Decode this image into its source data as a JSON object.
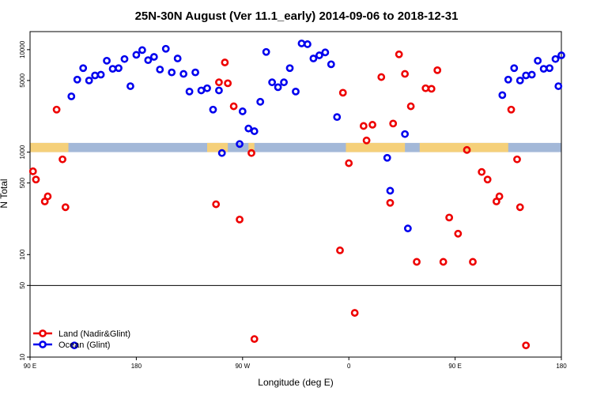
{
  "chart_data": {
    "type": "scatter",
    "title": "25N-30N August (Ver 11.1_early)   2014-09-06 to 2018-12-31",
    "xlabel": "Longitude (deg E)",
    "ylabel": "N Total",
    "xlim": [
      90,
      270
    ],
    "ylim": [
      10,
      15000
    ],
    "yscale": "log",
    "x_ticks": [
      {
        "value": 90,
        "label": "90 E"
      },
      {
        "value": 126,
        "label": "180"
      },
      {
        "value": 162,
        "label": "90 W"
      },
      {
        "value": 198,
        "label": "0"
      },
      {
        "value": 234,
        "label": "90 E"
      },
      {
        "value": 270,
        "label": "180"
      }
    ],
    "y_ticks": [
      {
        "value": 10,
        "label": "10"
      },
      {
        "value": 50,
        "label": "50"
      },
      {
        "value": 100,
        "label": "100"
      },
      {
        "value": 500,
        "label": "500"
      },
      {
        "value": 1000,
        "label": "1000"
      },
      {
        "value": 5000,
        "label": "5000"
      },
      {
        "value": 10000,
        "label": "10000"
      }
    ],
    "reference_lines": [
      50
    ],
    "surface_band": {
      "y_range": [
        1000,
        1230
      ],
      "land_color": "#F5D07A",
      "ocean_color": "#A3B8D8",
      "land_lon_ranges": [
        [
          90,
          103
        ],
        [
          150,
          157
        ],
        [
          164,
          166
        ],
        [
          197,
          217
        ],
        [
          222,
          252
        ]
      ]
    },
    "legend": {
      "position": "bottom-left"
    },
    "series": [
      {
        "name": "Land (Nadir&Glint)",
        "color": "#EE0000",
        "points": [
          [
            91,
            650
          ],
          [
            92,
            540
          ],
          [
            95,
            330
          ],
          [
            96,
            370
          ],
          [
            99,
            2600
          ],
          [
            101,
            850
          ],
          [
            102,
            290
          ],
          [
            153,
            310
          ],
          [
            154,
            4800
          ],
          [
            156,
            7500
          ],
          [
            157,
            4700
          ],
          [
            159,
            2800
          ],
          [
            161,
            220
          ],
          [
            165,
            980
          ],
          [
            166,
            15
          ],
          [
            195,
            110
          ],
          [
            196,
            3800
          ],
          [
            198,
            780
          ],
          [
            200,
            27
          ],
          [
            203,
            1800
          ],
          [
            204,
            1300
          ],
          [
            206,
            1850
          ],
          [
            209,
            5400
          ],
          [
            212,
            320
          ],
          [
            213,
            1900
          ],
          [
            215,
            9000
          ],
          [
            217,
            5800
          ],
          [
            219,
            2800
          ],
          [
            221,
            85
          ],
          [
            224,
            4200
          ],
          [
            226,
            4150
          ],
          [
            228,
            6300
          ],
          [
            230,
            85
          ],
          [
            232,
            230
          ],
          [
            235,
            160
          ],
          [
            238,
            1050
          ],
          [
            240,
            85
          ],
          [
            243,
            640
          ],
          [
            245,
            540
          ],
          [
            248,
            330
          ],
          [
            249,
            370
          ],
          [
            253,
            2600
          ],
          [
            255,
            850
          ],
          [
            256,
            290
          ],
          [
            258,
            13
          ]
        ]
      },
      {
        "name": "Ocean (Glint)",
        "color": "#0000EE",
        "points": [
          [
            104,
            3500
          ],
          [
            105,
            13
          ],
          [
            106,
            5100
          ],
          [
            108,
            6600
          ],
          [
            110,
            5000
          ],
          [
            112,
            5600
          ],
          [
            114,
            5700
          ],
          [
            116,
            7800
          ],
          [
            118,
            6500
          ],
          [
            120,
            6600
          ],
          [
            122,
            8100
          ],
          [
            124,
            4400
          ],
          [
            126,
            8900
          ],
          [
            128,
            9900
          ],
          [
            130,
            7900
          ],
          [
            132,
            8500
          ],
          [
            134,
            6400
          ],
          [
            136,
            10200
          ],
          [
            138,
            6000
          ],
          [
            140,
            8200
          ],
          [
            142,
            5800
          ],
          [
            144,
            3900
          ],
          [
            146,
            6000
          ],
          [
            148,
            4000
          ],
          [
            150,
            4200
          ],
          [
            152,
            2600
          ],
          [
            154,
            4000
          ],
          [
            155,
            980
          ],
          [
            161,
            1200
          ],
          [
            162,
            2500
          ],
          [
            164,
            1700
          ],
          [
            166,
            1600
          ],
          [
            168,
            3100
          ],
          [
            170,
            9500
          ],
          [
            172,
            4800
          ],
          [
            174,
            4300
          ],
          [
            176,
            4800
          ],
          [
            178,
            6600
          ],
          [
            180,
            3900
          ],
          [
            182,
            11500
          ],
          [
            184,
            11300
          ],
          [
            186,
            8200
          ],
          [
            188,
            8800
          ],
          [
            190,
            9400
          ],
          [
            192,
            7200
          ],
          [
            194,
            2200
          ],
          [
            211,
            880
          ],
          [
            212,
            420
          ],
          [
            217,
            1500
          ],
          [
            218,
            180
          ],
          [
            250,
            3600
          ],
          [
            252,
            5100
          ],
          [
            254,
            6600
          ],
          [
            256,
            5000
          ],
          [
            258,
            5600
          ],
          [
            260,
            5700
          ],
          [
            262,
            7800
          ],
          [
            264,
            6500
          ],
          [
            266,
            6600
          ],
          [
            268,
            8100
          ],
          [
            269,
            4400
          ],
          [
            270,
            8800
          ]
        ]
      }
    ]
  }
}
